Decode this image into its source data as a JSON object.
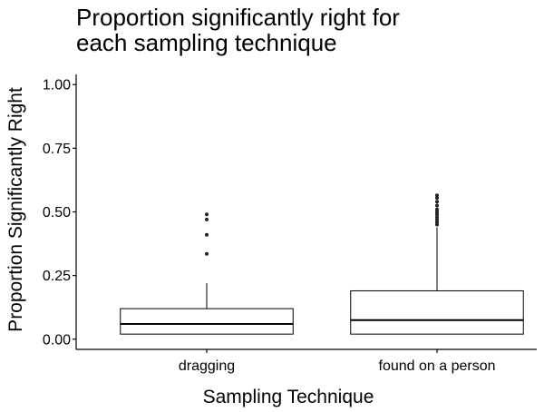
{
  "chart_data": {
    "type": "boxplot",
    "title_lines": [
      "Proportion significantly right for",
      "each sampling technique"
    ],
    "xlabel": "Sampling Technique",
    "ylabel": "Proportion Significantly Right",
    "ylim": [
      -0.04,
      1.04
    ],
    "y_ticks": [
      0.0,
      0.25,
      0.5,
      0.75,
      1.0
    ],
    "y_tick_labels": [
      "0.00",
      "0.25",
      "0.50",
      "0.75",
      "1.00"
    ],
    "grid": false,
    "categories": [
      "dragging",
      "found on a person"
    ],
    "boxes": [
      {
        "category": "dragging",
        "whisker_low": 0.02,
        "q1": 0.02,
        "median": 0.06,
        "q3": 0.12,
        "whisker_high": 0.22,
        "outliers": [
          0.335,
          0.41,
          0.47,
          0.49
        ]
      },
      {
        "category": "found on a person",
        "whisker_low": 0.02,
        "q1": 0.02,
        "median": 0.075,
        "q3": 0.19,
        "whisker_high": 0.44,
        "outliers": [
          0.45,
          0.46,
          0.47,
          0.48,
          0.49,
          0.5,
          0.51,
          0.525,
          0.54,
          0.555,
          0.565
        ]
      }
    ]
  }
}
